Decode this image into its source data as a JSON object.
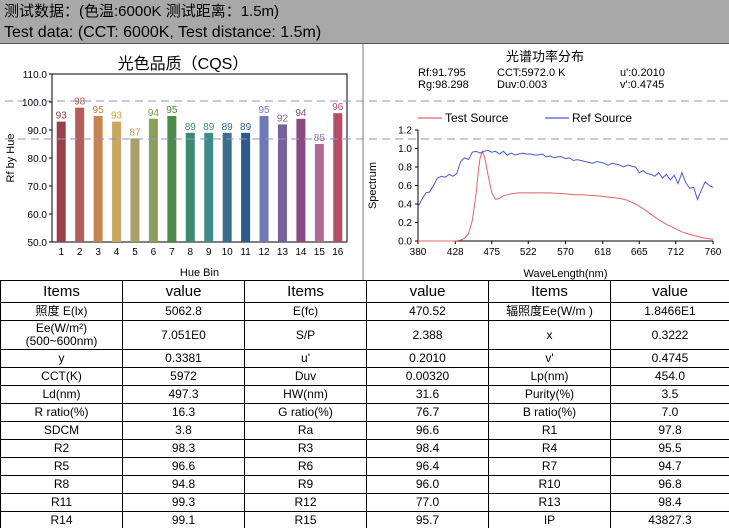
{
  "header": {
    "line1": "测试数据：(色温:6000K 测试距离：1.5m)",
    "line2": "Test data: (CCT: 6000K, Test distance: 1.5m)"
  },
  "cqs_chart": {
    "type": "bar",
    "title": "光色品质（CQS）",
    "ylabel": "Rf by Hue",
    "xlabel": "Hue Bin",
    "ylim": [
      50,
      110
    ],
    "yticks": [
      "50.0",
      "60.0",
      "70.0",
      "80.0",
      "90.0",
      "100.0",
      "110.0"
    ],
    "categories": [
      "1",
      "2",
      "3",
      "4",
      "5",
      "6",
      "7",
      "8",
      "9",
      "10",
      "11",
      "12",
      "13",
      "14",
      "15",
      "16"
    ],
    "values": [
      93,
      98,
      95,
      93,
      87,
      94,
      95,
      89,
      89,
      89,
      89,
      95,
      92,
      94,
      85,
      96
    ],
    "colors": [
      "#9a4048",
      "#b45e57",
      "#c6864e",
      "#c8a860",
      "#a8a068",
      "#8aa05a",
      "#4f8a48",
      "#3c8a72",
      "#3e8c8a",
      "#3a6e8a",
      "#2e5a8c",
      "#6e7ab4",
      "#76629a",
      "#8c4a84",
      "#b06a96",
      "#b44e68"
    ],
    "label_colors": [
      "#8a3e46",
      "#a85248",
      "#c47c3e",
      "#c8a23a",
      "#b89a5a",
      "#7aa040",
      "#4a8a3a",
      "#3a8a6a",
      "#3a8c8a",
      "#3a6e8a",
      "#2e5a8c",
      "#6e7ab4",
      "#76629a",
      "#8c4a84",
      "#b06a96",
      "#b44e68"
    ]
  },
  "chart_data": {
    "type": "line",
    "title": "光谱功率分布",
    "stats": {
      "rf": "Rf:91.795",
      "rg": "Rg:98.298",
      "cct": "CCT:5972.0 K",
      "duv": "Duv:0.003",
      "u": "u':0.2010",
      "v": "v':0.4745"
    },
    "ylabel": "Spectrum",
    "xlabel": "WaveLength(nm)",
    "xlim": [
      380,
      760
    ],
    "ylim": [
      0,
      1.2
    ],
    "xticks": [
      380,
      428,
      475,
      522,
      570,
      618,
      665,
      712,
      760
    ],
    "yticks": [
      "0.0",
      "0.2",
      "0.4",
      "0.6",
      "0.8",
      "1.0",
      "1.2"
    ],
    "legend": "top",
    "series": [
      {
        "name": "Test Source",
        "color": "#e06666",
        "x": [
          380,
          400,
          420,
          428,
          435,
          440,
          445,
          450,
          455,
          458,
          460,
          463,
          466,
          470,
          475,
          480,
          485,
          490,
          495,
          500,
          510,
          520,
          530,
          540,
          550,
          560,
          570,
          580,
          590,
          600,
          610,
          620,
          630,
          640,
          650,
          660,
          670,
          680,
          690,
          700,
          710,
          720,
          730,
          740,
          750,
          760
        ],
        "y": [
          0.0,
          0.0,
          0.0,
          0.0,
          0.01,
          0.03,
          0.08,
          0.22,
          0.52,
          0.78,
          0.9,
          0.97,
          0.9,
          0.72,
          0.52,
          0.45,
          0.46,
          0.49,
          0.5,
          0.51,
          0.52,
          0.52,
          0.52,
          0.52,
          0.52,
          0.515,
          0.51,
          0.5,
          0.5,
          0.495,
          0.49,
          0.48,
          0.47,
          0.46,
          0.44,
          0.4,
          0.35,
          0.29,
          0.23,
          0.18,
          0.14,
          0.1,
          0.07,
          0.05,
          0.03,
          0.02
        ]
      },
      {
        "name": "Ref Source",
        "color": "#4a5ad0",
        "x": [
          380,
          385,
          390,
          395,
          400,
          405,
          410,
          415,
          420,
          425,
          430,
          435,
          440,
          445,
          450,
          455,
          460,
          465,
          470,
          475,
          480,
          485,
          490,
          495,
          500,
          505,
          510,
          515,
          520,
          525,
          530,
          535,
          540,
          545,
          550,
          555,
          560,
          565,
          570,
          575,
          580,
          585,
          590,
          595,
          600,
          605,
          610,
          615,
          620,
          625,
          630,
          635,
          640,
          645,
          650,
          655,
          660,
          665,
          670,
          675,
          680,
          685,
          690,
          695,
          700,
          705,
          710,
          715,
          720,
          725,
          730,
          735,
          740,
          745,
          750,
          755,
          760
        ],
        "y": [
          0.37,
          0.45,
          0.52,
          0.53,
          0.6,
          0.68,
          0.7,
          0.69,
          0.72,
          0.7,
          0.73,
          0.86,
          0.9,
          0.88,
          0.96,
          0.97,
          0.95,
          0.97,
          0.98,
          0.96,
          0.97,
          0.94,
          0.97,
          0.93,
          0.95,
          0.93,
          0.94,
          0.95,
          0.94,
          0.94,
          0.93,
          0.93,
          0.94,
          0.91,
          0.92,
          0.9,
          0.91,
          0.91,
          0.89,
          0.9,
          0.87,
          0.88,
          0.87,
          0.86,
          0.85,
          0.84,
          0.86,
          0.85,
          0.84,
          0.82,
          0.84,
          0.83,
          0.82,
          0.8,
          0.82,
          0.81,
          0.8,
          0.74,
          0.76,
          0.73,
          0.72,
          0.7,
          0.74,
          0.68,
          0.72,
          0.66,
          0.71,
          0.62,
          0.74,
          0.63,
          0.57,
          0.58,
          0.45,
          0.55,
          0.64,
          0.6,
          0.58
        ]
      }
    ]
  },
  "table": {
    "headers": [
      "Items",
      "value",
      "Items",
      "value",
      "Items",
      "value"
    ],
    "rows": [
      [
        "照度 E(lx)",
        "5062.8",
        "E(fc)",
        "470.52",
        "辐照度Ee(W/m )",
        "1.8466E1"
      ],
      [
        "Ee(W/m²)(500~600nm)",
        "7.051E0",
        "S/P",
        "2.388",
        "x",
        "0.3222"
      ],
      [
        "y",
        "0.3381",
        "u'",
        "0.2010",
        "v'",
        "0.4745"
      ],
      [
        "CCT(K)",
        "5972",
        "Duv",
        "0.00320",
        "Lp(nm)",
        "454.0"
      ],
      [
        "Ld(nm)",
        "497.3",
        "HW(nm)",
        "31.6",
        "Purity(%)",
        "3.5"
      ],
      [
        "R ratio(%)",
        "16.3",
        "G ratio(%)",
        "76.7",
        "B ratio(%)",
        "7.0"
      ],
      [
        "SDCM",
        "3.8",
        "Ra",
        "96.6",
        "R1",
        "97.8"
      ],
      [
        "R2",
        "98.3",
        "R3",
        "98.4",
        "R4",
        "95.5"
      ],
      [
        "R5",
        "96.6",
        "R6",
        "96.4",
        "R7",
        "94.7"
      ],
      [
        "R8",
        "94.8",
        "R9",
        "96.0",
        "R10",
        "96.8"
      ],
      [
        "R11",
        "99.3",
        "R12",
        "77.0",
        "R13",
        "98.4"
      ],
      [
        "R14",
        "99.1",
        "R15",
        "95.7",
        "IP",
        "43827.3"
      ]
    ]
  }
}
